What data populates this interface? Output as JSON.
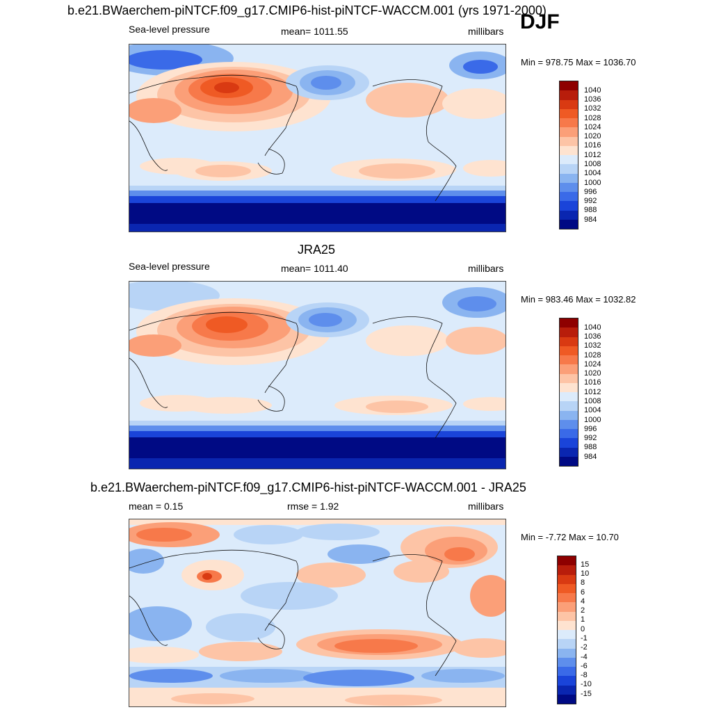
{
  "season": "DJF",
  "panels": [
    {
      "title": "b.e21.BWaerchem-piNTCF.f09_g17.CMIP6-hist-piNTCF-WACCM.001 (yrs 1971-2000)",
      "left": "Sea-level pressure",
      "center": "mean= 1011.55",
      "right": "millibars",
      "minmax": "Min = 978.75 Max = 1036.70",
      "colorbar": {
        "labels": [
          "1040",
          "1036",
          "1032",
          "1028",
          "1024",
          "1020",
          "1016",
          "1012",
          "1008",
          "1004",
          "1000",
          "996",
          "992",
          "988",
          "984"
        ],
        "colors": [
          "#8e0000",
          "#b81d0b",
          "#d93a12",
          "#ef5a24",
          "#f7794a",
          "#fb9f78",
          "#fdc4a6",
          "#fee3d0",
          "#dcebfb",
          "#b8d4f6",
          "#8ab4f0",
          "#5e8eec",
          "#3a6ae8",
          "#1a44d9",
          "#0a26b0",
          "#000a84"
        ]
      },
      "map": "model"
    },
    {
      "title": "JRA25",
      "left": "Sea-level pressure",
      "center": "mean= 1011.40",
      "right": "millibars",
      "minmax": "Min = 983.46 Max = 1032.82",
      "colorbar": {
        "labels": [
          "1040",
          "1036",
          "1032",
          "1028",
          "1024",
          "1020",
          "1016",
          "1012",
          "1008",
          "1004",
          "1000",
          "996",
          "992",
          "988",
          "984"
        ],
        "colors": [
          "#8e0000",
          "#b81d0b",
          "#d93a12",
          "#ef5a24",
          "#f7794a",
          "#fb9f78",
          "#fdc4a6",
          "#fee3d0",
          "#dcebfb",
          "#b8d4f6",
          "#8ab4f0",
          "#5e8eec",
          "#3a6ae8",
          "#1a44d9",
          "#0a26b0",
          "#000a84"
        ]
      },
      "map": "obs"
    },
    {
      "title": "b.e21.BWaerchem-piNTCF.f09_g17.CMIP6-hist-piNTCF-WACCM.001 - JRA25",
      "left": "mean =   0.15",
      "center": "rmse =   1.92",
      "right": "millibars",
      "minmax": "Min =  -7.72 Max =  10.70",
      "colorbar": {
        "labels": [
          "15",
          "10",
          "8",
          "6",
          "4",
          "2",
          "1",
          "0",
          "-1",
          "-2",
          "-4",
          "-6",
          "-8",
          "-10",
          "-15"
        ],
        "colors": [
          "#8e0000",
          "#b81d0b",
          "#d93a12",
          "#ef5a24",
          "#f7794a",
          "#fb9f78",
          "#fdc4a6",
          "#fee3d0",
          "#dcebfb",
          "#b8d4f6",
          "#8ab4f0",
          "#5e8eec",
          "#3a6ae8",
          "#1a44d9",
          "#0a26b0",
          "#000a84"
        ]
      },
      "map": "diff"
    }
  ]
}
